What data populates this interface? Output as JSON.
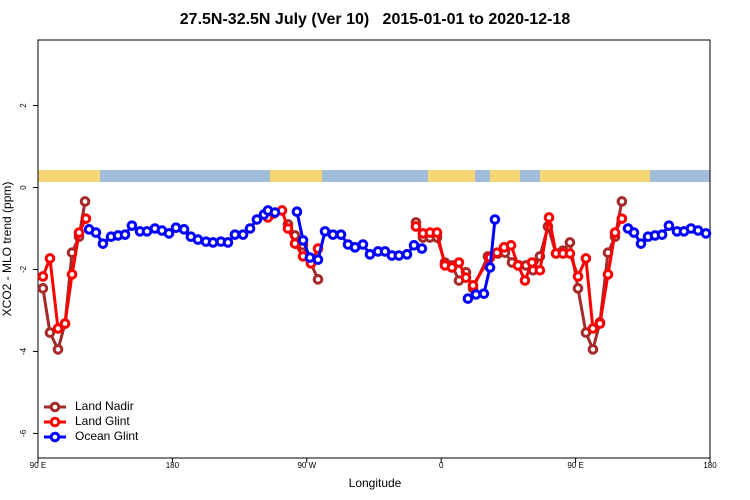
{
  "chart_data": {
    "type": "line",
    "title": "27.5N-32.5N July (Ver 10)   2015-01-01 to 2020-12-18",
    "xlabel": "Longitude",
    "ylabel": "XCO2 - MLO trend (ppm)",
    "xlim": [
      90,
      540
    ],
    "xticks": [
      {
        "value": 90,
        "label": "90 E"
      },
      180,
      {
        "value": 270,
        "label": "90 W"
      },
      {
        "value": 360,
        "label": "0"
      },
      {
        "value": 450,
        "label": "90 E"
      },
      {
        "value": 540,
        "label": "180"
      }
    ],
    "ylim": [
      -6.6,
      3.6
    ],
    "yticks": [
      -6,
      -4,
      -2,
      0,
      2
    ],
    "legend": "bottom-left",
    "series": [
      {
        "name": "Land Nadir",
        "color": "#a52a2a",
        "x": [
          93.3,
          98.0,
          103.4,
          108.1,
          112.8,
          117.5,
          121.5,
          null,
          257.4,
          262.1,
          267.5,
          272.8,
          277.5,
          null,
          343.1,
          347.8,
          352.5,
          357.2,
          362.5,
          367.2,
          371.9,
          376.6,
          381.3,
          391.3,
          398.0,
          402.7,
          407.4,
          412.1,
          416.8,
          421.5,
          426.1,
          431.5,
          436.9,
          441.5,
          446.2,
          451.6,
          456.9,
          461.6,
          466.3,
          471.7,
          476.4,
          481.0
        ],
        "values": [
          -2.46,
          -3.54,
          -3.95,
          -3.32,
          -1.59,
          -1.2,
          -0.34,
          null,
          -0.9,
          -1.17,
          -1.41,
          -1.85,
          -2.24,
          null,
          -0.85,
          -1.22,
          -1.22,
          -1.22,
          -1.83,
          -1.9,
          -2.27,
          -2.07,
          -2.46,
          -1.68,
          -1.61,
          -1.59,
          -1.83,
          -1.9,
          -1.9,
          -2.02,
          -1.68,
          -0.95,
          -1.61,
          -1.54,
          -1.34,
          -2.46,
          -3.54,
          -3.95,
          -3.29,
          -1.59,
          -1.2,
          -0.34
        ]
      },
      {
        "name": "Land Glint",
        "color": "#ff0000",
        "x": [
          93.3,
          98.0,
          103.4,
          108.1,
          112.8,
          117.5,
          122.1,
          null,
          244.0,
          248.0,
          253.4,
          257.4,
          262.1,
          267.5,
          272.8,
          277.5,
          null,
          343.1,
          347.8,
          352.5,
          357.2,
          362.5,
          367.2,
          371.9,
          376.6,
          381.3,
          392.7,
          397.4,
          402.1,
          406.8,
          411.4,
          416.1,
          420.8,
          426.1,
          432.2,
          436.9,
          441.5,
          446.2,
          451.6,
          456.9,
          461.6,
          466.3,
          471.7,
          476.4,
          481.0
        ],
        "values": [
          -2.17,
          -1.73,
          -3.44,
          -3.32,
          -2.12,
          -1.1,
          -0.76,
          null,
          -0.73,
          -0.63,
          -0.56,
          -1.0,
          -1.37,
          -1.68,
          -1.85,
          -1.49,
          null,
          -0.95,
          -1.12,
          -1.1,
          -1.1,
          -1.9,
          -1.95,
          -1.83,
          -2.2,
          -2.39,
          -1.71,
          -1.59,
          -1.46,
          -1.41,
          -1.9,
          -2.27,
          -1.83,
          -2.02,
          -0.73,
          -1.61,
          -1.61,
          -1.61,
          -2.17,
          -1.73,
          -3.44,
          -3.32,
          -2.12,
          -1.1,
          -0.76
        ]
      },
      {
        "name": "Ocean Glint",
        "color": "#0000ff",
        "x": [
          124.2,
          128.8,
          133.5,
          138.9,
          143.6,
          148.3,
          152.9,
          158.3,
          163.0,
          168.3,
          173.0,
          177.7,
          182.4,
          187.8,
          192.4,
          197.1,
          202.5,
          207.2,
          212.5,
          217.2,
          221.9,
          227.3,
          232.0,
          236.6,
          241.3,
          244.0,
          248.7,
          null,
          263.4,
          267.5,
          272.1,
          277.5,
          282.2,
          287.5,
          292.9,
          297.6,
          302.3,
          307.6,
          312.3,
          317.7,
          322.4,
          327.0,
          331.7,
          337.1,
          341.8,
          347.1,
          null,
          377.9,
          383.3,
          388.6,
          392.7,
          396.0,
          null,
          485.1,
          489.1,
          493.8,
          498.5,
          503.2,
          507.9,
          512.5,
          517.9,
          522.6,
          527.3,
          532.0,
          537.3
        ],
        "values": [
          -1.02,
          -1.1,
          -1.37,
          -1.2,
          -1.17,
          -1.15,
          -0.93,
          -1.07,
          -1.07,
          -1.0,
          -1.05,
          -1.12,
          -0.98,
          -1.02,
          -1.2,
          -1.27,
          -1.32,
          -1.34,
          -1.32,
          -1.34,
          -1.15,
          -1.15,
          -1.0,
          -0.78,
          -0.66,
          -0.56,
          -0.61,
          null,
          -0.59,
          -1.29,
          -1.71,
          -1.76,
          -1.07,
          -1.15,
          -1.15,
          -1.39,
          -1.46,
          -1.39,
          -1.63,
          -1.56,
          -1.56,
          -1.66,
          -1.66,
          -1.63,
          -1.41,
          -1.49,
          null,
          -2.71,
          -2.61,
          -2.59,
          -1.95,
          -0.78,
          null,
          -1.0,
          -1.1,
          -1.37,
          -1.2,
          -1.17,
          -1.15,
          -0.93,
          -1.07,
          -1.07,
          -1.0,
          -1.05,
          -1.12
        ]
      }
    ]
  }
}
